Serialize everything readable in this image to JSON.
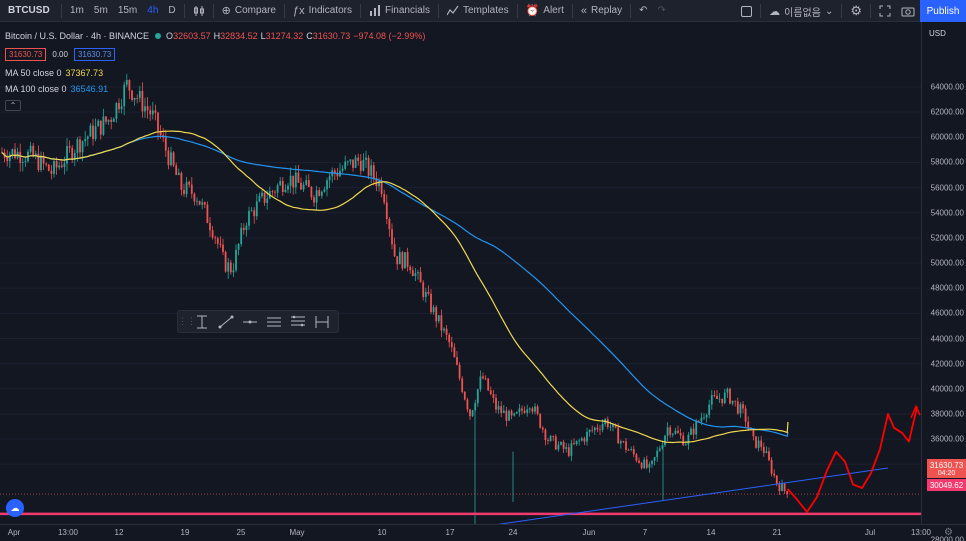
{
  "toolbar": {
    "symbol": "BTCUSD",
    "intervals": [
      "1m",
      "5m",
      "15m",
      "4h",
      "D"
    ],
    "compare": "Compare",
    "indicators": "Indicators",
    "financials": "Financials",
    "templates": "Templates",
    "alert": "Alert",
    "replay": "Replay",
    "layout_name": "이름없음",
    "publish": "Publish"
  },
  "legend": {
    "title": "Bitcoin / U.S. Dollar · 4h · BINANCE",
    "o_label": "O",
    "o": "32603.57",
    "h_label": "H",
    "h": "32834.52",
    "l_label": "L",
    "l": "31274.32",
    "c_label": "C",
    "c": "31630.73",
    "change": "−974.08 (−2.99%)",
    "bid": "31630.73",
    "spread": "0.00",
    "ask": "31630.73"
  },
  "indicators": [
    {
      "name": "MA 50 close 0",
      "value": "37367.73",
      "color": "#f0d94e"
    },
    {
      "name": "MA 100 close 0",
      "value": "36546.91",
      "color": "#2196f3"
    }
  ],
  "price_scale": {
    "currency": "USD",
    "labels": [
      "64000.00",
      "62000.00",
      "60000.00",
      "58000.00",
      "56000.00",
      "54000.00",
      "52000.00",
      "50000.00",
      "48000.00",
      "46000.00",
      "44000.00",
      "42000.00",
      "40000.00",
      "38000.00",
      "36000.00",
      "34000.00",
      "28000.00"
    ],
    "current_price_tag": "31630.73",
    "countdown": "04:20",
    "support_level_tag": "30049.62"
  },
  "time_scale": {
    "labels": [
      "Apr",
      "13:00",
      "12",
      "19",
      "25",
      "May",
      "10",
      "17",
      "24",
      "Jun",
      "7",
      "14",
      "21",
      "Jul",
      "13:00"
    ]
  },
  "colors": {
    "up": "#26a69a",
    "down": "#ef5350",
    "ma50": "#f0d94e",
    "ma100": "#2196f3",
    "support": "#f23a6e",
    "trendline": "#2962ff",
    "projection": "#ff0000",
    "accent": "#2962ff"
  },
  "chart_data": {
    "type": "candlestick",
    "title": "Bitcoin / U.S. Dollar · 4h · BINANCE",
    "ylim": [
      27000,
      66000
    ],
    "ma50_close": 37367.73,
    "ma100_close": 36546.91,
    "last_close": 31630.73,
    "support_level": 30049.62,
    "close_path": [
      {
        "t": "Apr 1",
        "close": 58800
      },
      {
        "t": "Apr 4",
        "close": 58500
      },
      {
        "t": "Apr 7",
        "close": 57200
      },
      {
        "t": "Apr 10",
        "close": 59500
      },
      {
        "t": "Apr 13",
        "close": 61500
      },
      {
        "t": "Apr 14",
        "close": 64200
      },
      {
        "t": "Apr 16",
        "close": 61800
      },
      {
        "t": "Apr 18",
        "close": 56000
      },
      {
        "t": "Apr 20",
        "close": 55500
      },
      {
        "t": "Apr 22",
        "close": 52500
      },
      {
        "t": "Apr 23",
        "close": 50000
      },
      {
        "t": "Apr 24",
        "close": 49500
      },
      {
        "t": "Apr 26",
        "close": 53500
      },
      {
        "t": "Apr 28",
        "close": 55000
      },
      {
        "t": "May 1",
        "close": 56800
      },
      {
        "t": "May 4",
        "close": 55500
      },
      {
        "t": "May 6",
        "close": 57000
      },
      {
        "t": "May 9",
        "close": 58200
      },
      {
        "t": "May 11",
        "close": 56000
      },
      {
        "t": "May 12",
        "close": 50500
      },
      {
        "t": "May 13",
        "close": 50000
      },
      {
        "t": "May 15",
        "close": 47000
      },
      {
        "t": "May 17",
        "close": 43500
      },
      {
        "t": "May 19",
        "close": 38000
      },
      {
        "t": "May 20",
        "close": 41000
      },
      {
        "t": "May 22",
        "close": 38500
      },
      {
        "t": "May 24",
        "close": 37500
      },
      {
        "t": "May 26",
        "close": 39000
      },
      {
        "t": "May 28",
        "close": 36000
      },
      {
        "t": "May 30",
        "close": 35000
      },
      {
        "t": "Jun 1",
        "close": 36500
      },
      {
        "t": "Jun 3",
        "close": 37500
      },
      {
        "t": "Jun 5",
        "close": 35500
      },
      {
        "t": "Jun 8",
        "close": 33500
      },
      {
        "t": "Jun 10",
        "close": 37000
      },
      {
        "t": "Jun 12",
        "close": 35800
      },
      {
        "t": "Jun 14",
        "close": 39000
      },
      {
        "t": "Jun 16",
        "close": 39500
      },
      {
        "t": "Jun 18",
        "close": 37800
      },
      {
        "t": "Jun 19",
        "close": 35800
      },
      {
        "t": "Jun 20",
        "close": 35500
      },
      {
        "t": "Jun 21",
        "close": 32500
      },
      {
        "t": "Jun 22",
        "close": 31630.73
      }
    ]
  }
}
